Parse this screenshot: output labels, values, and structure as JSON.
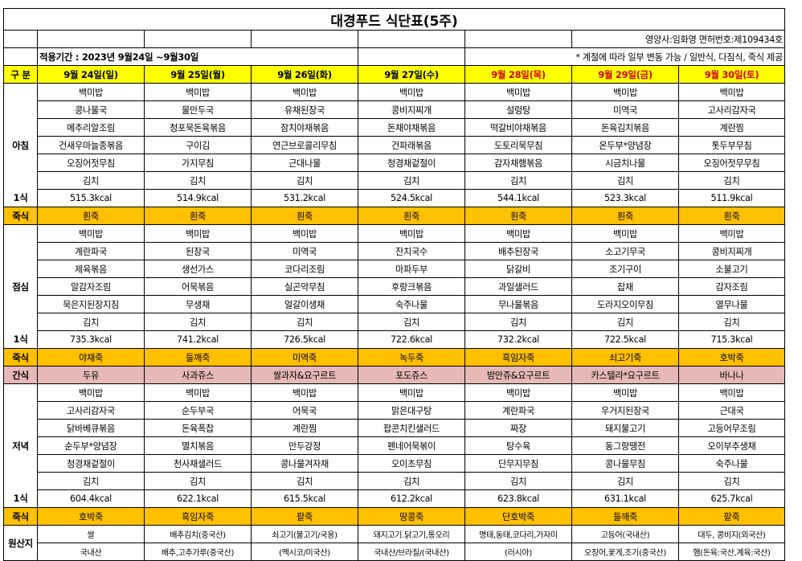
{
  "title": "대경푸드 식단표(5주)",
  "dietitian": "영양사:임화영   면허번호:제109434호",
  "period": "적용기간 : 2023년 9월24일 ~9월30일",
  "notice": "* 계절에 따라 일부 변동 가능 / 일반식, 다짐식, 죽식 제공",
  "header": {
    "label": "구 분",
    "days": [
      "9월 24일(일)",
      "9월 25일(월)",
      "9월 26일(화)",
      "9월 27일(수)",
      "9월 28일(목)",
      "9월 29일(금)",
      "9월 30일(토)"
    ]
  },
  "breakfast": {
    "label": "아침",
    "kcal_label": "1식",
    "rows": [
      [
        "백미밥",
        "백미밥",
        "백미밥",
        "백미밥",
        "백미밥",
        "백미밥",
        "백미밥"
      ],
      [
        "콩나물국",
        "물만두국",
        "유채된장국",
        "콩비지찌개",
        "설렁탕",
        "미역국",
        "고사리감자국"
      ],
      [
        "메추리알조림",
        "청포묵돈육볶음",
        "잠치야채볶음",
        "돈채야채볶음",
        "떡갈비야채볶음",
        "돈육김치볶음",
        "계란찜"
      ],
      [
        "건새우마늘종볶음",
        "구이김",
        "연근브로콜리무침",
        "건파래볶음",
        "도토리묵무침",
        "온두부*양념장",
        "톳두부무침"
      ],
      [
        "오징어젓무침",
        "가지무침",
        "근대나물",
        "청경채겉절이",
        "감자채햄볶음",
        "시금치나물",
        "오징어젓무무침"
      ],
      [
        "김치",
        "김치",
        "김치",
        "김치",
        "김치",
        "김치",
        "김치"
      ]
    ],
    "kcal": [
      "515.3kcal",
      "514.9kcal",
      "531.2kcal",
      "524.5kcal",
      "544.1kcal",
      "523.3kcal",
      "511.9kcal"
    ]
  },
  "breakfast_porridge": {
    "label": "죽식",
    "items": [
      "흰죽",
      "흰죽",
      "흰죽",
      "흰죽",
      "흰죽",
      "흰죽",
      "흰죽"
    ]
  },
  "lunch": {
    "label": "점심",
    "kcal_label": "1식",
    "rows": [
      [
        "백미밥",
        "백미밥",
        "백미밥",
        "백미밥",
        "백미밥",
        "백미밥",
        "백미밥"
      ],
      [
        "계란파국",
        "된장국",
        "미역국",
        "잔치국수",
        "배추된장국",
        "소고기무국",
        "콩비지찌개"
      ],
      [
        "제육볶음",
        "생선가스",
        "코다리조림",
        "마파두부",
        "닭갈비",
        "조기구이",
        "소불고기"
      ],
      [
        "알감자조림",
        "어묵볶음",
        "실곤약무침",
        "후랑크볶음",
        "과일샐러드",
        "잡채",
        "감자조림"
      ],
      [
        "묵은지된장지짐",
        "무생채",
        "얼갈이생채",
        "숙주나물",
        "무나물볶음",
        "도라지오이무침",
        "열무나물"
      ],
      [
        "김치",
        "김치",
        "김치",
        "김치",
        "김치",
        "김치",
        "김치"
      ]
    ],
    "kcal": [
      "735.3kcal",
      "741.2kcal",
      "726.5kcal",
      "722.6kcal",
      "732.2kcal",
      "722.5kcal",
      "715.3kcal"
    ]
  },
  "lunch_porridge": {
    "label": "죽식",
    "items": [
      "야채죽",
      "들깨죽",
      "미역죽",
      "녹두죽",
      "흑임자죽",
      "쇠고기죽",
      "호박죽"
    ]
  },
  "snack": {
    "label": "간식",
    "items": [
      "두유",
      "사과쥬스",
      "쌀과자&요구르트",
      "포도쥬스",
      "밤만쥬&요구르트",
      "카스텔라*요구르트",
      "바나나"
    ]
  },
  "dinner": {
    "label": "저녁",
    "kcal_label": "1식",
    "rows": [
      [
        "백미밥",
        "백미밥",
        "백미밥",
        "백미밥",
        "백미밥",
        "백미밥",
        "백미밥"
      ],
      [
        "고사리감자국",
        "순두부국",
        "어묵국",
        "맑은대구탕",
        "계란파국",
        "우거지된장국",
        "근대국"
      ],
      [
        "닭바베큐볶음",
        "돈육폭찹",
        "계란찜",
        "팝콘치킨샐러드",
        "짜장",
        "돼지불고기",
        "고등어무조림"
      ],
      [
        "순두부*양념장",
        "멸치볶음",
        "만두강정",
        "펜네어묵볶이",
        "탕수육",
        "동그랑땡전",
        "오이부추생채"
      ],
      [
        "청경채겉절이",
        "천사채샐러드",
        "콩나물겨자채",
        "오이초무침",
        "단무지무침",
        "콩나물무침",
        "숙주나물"
      ],
      [
        "김치",
        "김치",
        "김치",
        "김치",
        "김치",
        "김치",
        "김치"
      ]
    ],
    "kcal": [
      "604.4kcal",
      "622.1kcal",
      "615.5kcal",
      "612.2kcal",
      "623.8kcal",
      "631.1kcal",
      "625.7kcal"
    ]
  },
  "dinner_porridge": {
    "label": "죽식",
    "items": [
      "호박죽",
      "흑임자죽",
      "팥죽",
      "땅콩죽",
      "단호박죽",
      "들깨죽",
      "팥죽"
    ]
  },
  "origin": {
    "label": "원산지",
    "row1": [
      "쌀",
      "배추김치(중국산)",
      "쇠고기(불고기/국용)",
      "돼지고기.닭고기,통오리",
      "명태,동태,코다리,가자미",
      "고등어(국내산)",
      "대두, 콩비지(외국산)"
    ],
    "row2": [
      "국내산",
      "배추,고추가루(중국산)",
      "(멕시코/미국산)",
      "국내산/브라질/(국내산)",
      "(러시아)",
      "오징어,꽃게,조기(중국산)",
      "햄(돈육:국산,계육:국산)"
    ]
  }
}
